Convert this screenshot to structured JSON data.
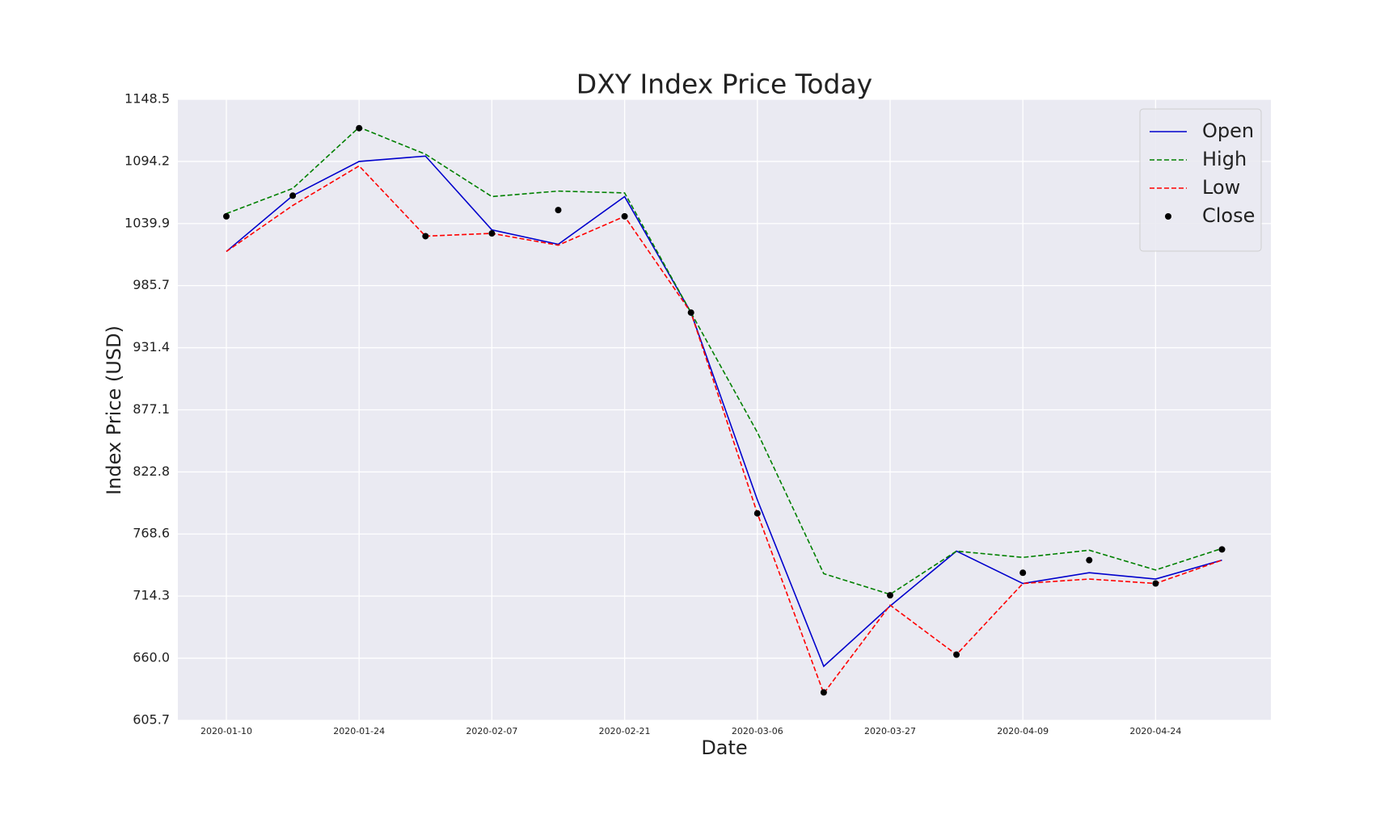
{
  "chart_data": {
    "type": "line",
    "title": "DXY Index Price Today",
    "x_label": "Date",
    "y_label": "Index Price (USD)",
    "categories": [
      "2020-01-10",
      null,
      "2020-01-24",
      null,
      "2020-02-07",
      null,
      "2020-02-21",
      null,
      "2020-03-06",
      null,
      "2020-03-27",
      null,
      "2020-04-09",
      null,
      "2020-04-24",
      null
    ],
    "series": [
      {
        "name": "Open",
        "color": "#0000cc",
        "style": "solid",
        "values": [
          1015.5,
          1064.3,
          1094.2,
          1098.9,
          1034.4,
          1021.8,
          1063.5,
          962.1,
          798.4,
          652.9,
          705.6,
          753.6,
          725.3,
          734.7,
          729.2,
          745.7
        ]
      },
      {
        "name": "High",
        "color": "#008000",
        "style": "dashed",
        "values": [
          1048.6,
          1070.6,
          1124.1,
          1100.5,
          1063.5,
          1068.3,
          1066.7,
          962.1,
          857.4,
          733.9,
          715.8,
          753.6,
          748.1,
          754.4,
          737.1,
          755.9
        ]
      },
      {
        "name": "Low",
        "color": "#ff0000",
        "style": "dashed",
        "values": [
          1015.5,
          1055.7,
          1090.3,
          1028.9,
          1031.3,
          1021.0,
          1046.2,
          962.1,
          786.6,
          629.3,
          706.4,
          663.1,
          725.3,
          729.2,
          725.3,
          745.7
        ]
      },
      {
        "name": "Close",
        "color": "#000000",
        "style": "markers",
        "values": [
          1046.2,
          1064.3,
          1123.3,
          1028.9,
          1031.3,
          1051.7,
          1046.2,
          962.1,
          786.6,
          630.1,
          715.0,
          663.1,
          734.7,
          745.7,
          725.3,
          755.1
        ]
      }
    ],
    "ylim": [
      605.7,
      1148.5
    ],
    "yticks": [
      605.7,
      {
        "value": 660,
        "label": "660.0"
      },
      714.3,
      768.6,
      822.8,
      877.1,
      931.4,
      985.7,
      1039.9,
      1094.2,
      1148.5
    ],
    "grid": true,
    "legend": "upper right"
  }
}
